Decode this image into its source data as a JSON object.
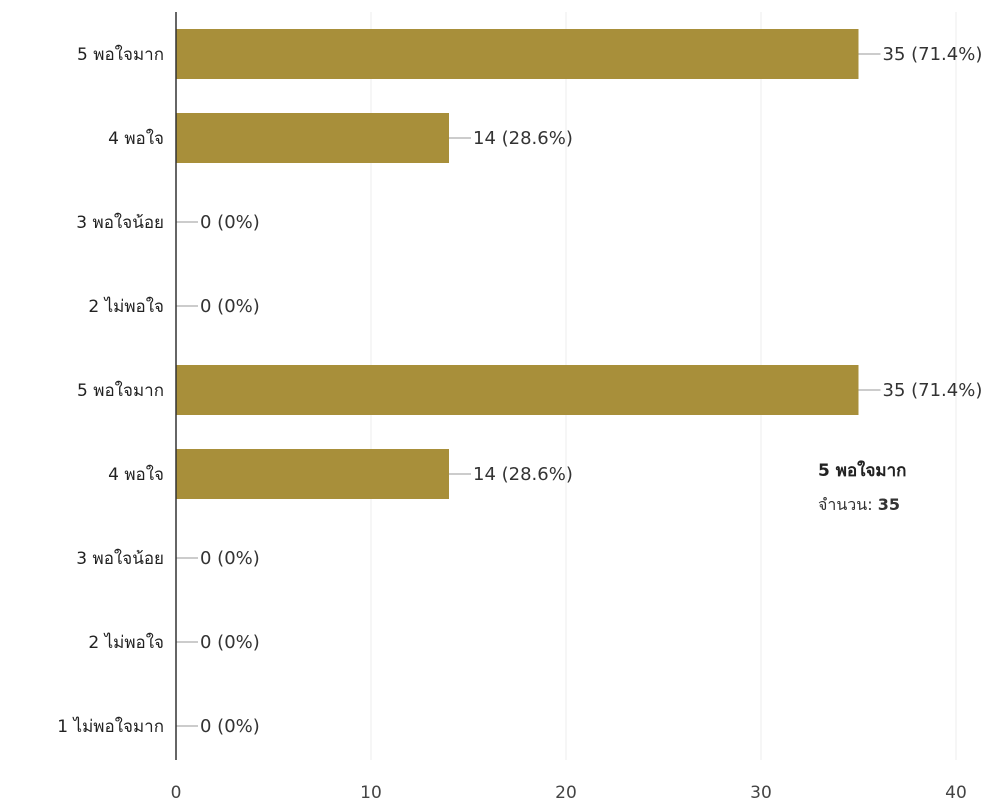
{
  "chart_data": {
    "type": "bar",
    "orientation": "horizontal",
    "categories": [
      "5 พอใจมาก",
      "4 พอใจ",
      "3 พอใจน้อย",
      "2 ไม่พอใจ",
      "5 พอใจมาก",
      "4 พอใจ",
      "3 พอใจน้อย",
      "2 ไม่พอใจ",
      "1 ไม่พอใจมาก"
    ],
    "values": [
      35,
      14,
      0,
      0,
      35,
      14,
      0,
      0,
      0
    ],
    "value_labels": [
      "35 (71.4%)",
      "14 (28.6%)",
      "0 (0%)",
      "0 (0%)",
      "35 (71.4%)",
      "14 (28.6%)",
      "0 (0%)",
      "0 (0%)",
      "0 (0%)"
    ],
    "xlim": [
      0,
      40
    ],
    "xticks": [
      0,
      10,
      20,
      30,
      40
    ],
    "xtick_labels": [
      "0",
      "10",
      "20",
      "30",
      "40"
    ],
    "bar_color": "#a88f3a",
    "grid": true,
    "tooltip": {
      "title": "5 พอใจมาก",
      "label": "จำนวน: ",
      "value": "35"
    }
  }
}
